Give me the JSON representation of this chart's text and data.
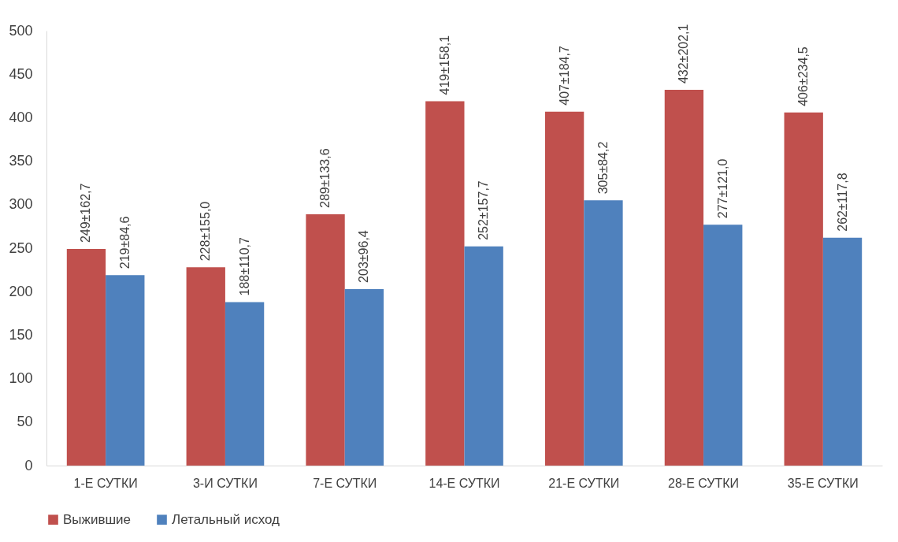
{
  "chart_data": {
    "type": "bar",
    "categories": [
      "1-Е СУТКИ",
      "3-И СУТКИ",
      "7-Е СУТКИ",
      "14-Е СУТКИ",
      "21-Е СУТКИ",
      "28-Е СУТКИ",
      "35-Е СУТКИ"
    ],
    "series": [
      {
        "name": "Выжившие",
        "color": "#c0504d",
        "values": [
          249,
          228,
          289,
          419,
          407,
          432,
          406
        ],
        "value_labels": [
          "249±162,7",
          "228±155,0",
          "289±133,6",
          "419±158,1",
          "407±184,7",
          "432±202,1",
          "406±234,5"
        ]
      },
      {
        "name": "Летальный исход",
        "color": "#4f81bd",
        "values": [
          219,
          188,
          203,
          252,
          305,
          277,
          262
        ],
        "value_labels": [
          "219±84,6",
          "188±110,7",
          "203±96,4",
          "252±157,7",
          "305±84,2",
          "277±121,0",
          "262±117,8"
        ]
      }
    ],
    "ylim": [
      0,
      500
    ],
    "yticks": [
      0,
      50,
      100,
      150,
      200,
      250,
      300,
      350,
      400,
      450,
      500
    ],
    "grid": false,
    "legend": "bottom"
  }
}
